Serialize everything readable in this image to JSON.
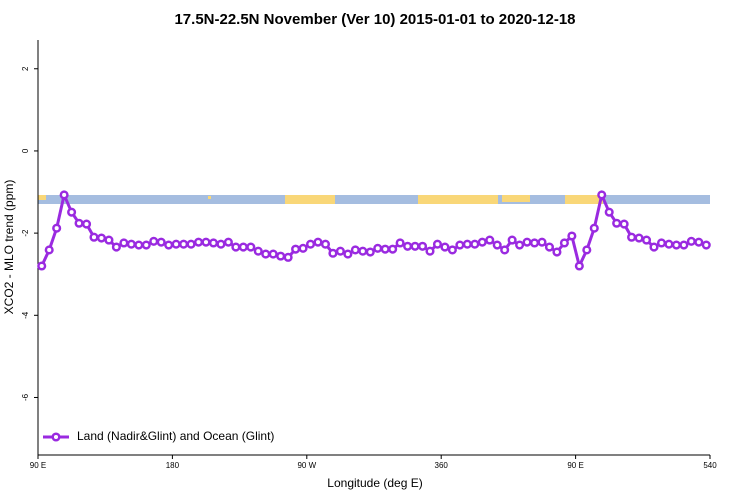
{
  "chart_data": {
    "type": "line",
    "title": "17.5N-22.5N November (Ver 10)   2015-01-01 to 2020-12-18",
    "x_label": "Longitude (deg E)",
    "y_label": "XCO2 - MLO trend (ppm)",
    "xlim": [
      90,
      540
    ],
    "ylim": [
      -7.4,
      2.7
    ],
    "xticks": [
      {
        "value": 90,
        "label": "90 E"
      },
      180,
      {
        "value": 270,
        "label": "90 W"
      },
      360,
      {
        "value": 450,
        "label": "90 E"
      },
      540
    ],
    "yticks": [
      2,
      0,
      -2,
      -4,
      -6
    ],
    "x": [
      92.5,
      97.5,
      102.5,
      107.5,
      112.5,
      117.5,
      122.5,
      127.5,
      132.5,
      137.5,
      142.5,
      147.5,
      152.5,
      157.5,
      162.5,
      167.5,
      172.5,
      177.5,
      182.5,
      187.5,
      192.5,
      197.5,
      202.5,
      207.5,
      212.5,
      217.5,
      222.5,
      227.5,
      232.5,
      237.5,
      242.5,
      247.5,
      252.5,
      257.5,
      262.5,
      267.5,
      272.5,
      277.5,
      282.5,
      287.5,
      292.5,
      297.5,
      302.5,
      307.5,
      312.5,
      317.5,
      322.5,
      327.5,
      332.5,
      337.5,
      342.5,
      347.5,
      352.5,
      357.5,
      362.5,
      367.5,
      372.5,
      377.5,
      382.5,
      387.5,
      392.5,
      397.5,
      402.5,
      407.5,
      412.5,
      417.5,
      422.5,
      427.5,
      432.5,
      437.5,
      442.5,
      447.5,
      452.5,
      457.5,
      462.5,
      467.5,
      472.5,
      477.5,
      482.5,
      487.5,
      492.5,
      497.5,
      502.5,
      507.5,
      512.5,
      517.5,
      522.5,
      527.5,
      532.5,
      537.5
    ],
    "legend": "bottom-left",
    "series": [
      {
        "name": "Land (Nadir&Glint) and Ocean (Glint)",
        "color": "#9a2ae0",
        "values": [
          -2.8,
          -2.41,
          -1.88,
          -1.07,
          -1.49,
          -1.76,
          -1.78,
          -2.1,
          -2.12,
          -2.17,
          -2.34,
          -2.24,
          -2.27,
          -2.29,
          -2.29,
          -2.2,
          -2.22,
          -2.29,
          -2.27,
          -2.27,
          -2.27,
          -2.22,
          -2.22,
          -2.24,
          -2.27,
          -2.22,
          -2.34,
          -2.34,
          -2.34,
          -2.44,
          -2.51,
          -2.51,
          -2.56,
          -2.59,
          -2.39,
          -2.37,
          -2.27,
          -2.22,
          -2.27,
          -2.49,
          -2.44,
          -2.51,
          -2.41,
          -2.44,
          -2.46,
          -2.37,
          -2.39,
          -2.39,
          -2.24,
          -2.32,
          -2.32,
          -2.32,
          -2.44,
          -2.27,
          -2.34,
          -2.41,
          -2.29,
          -2.27,
          -2.27,
          -2.22,
          -2.17,
          -2.29,
          -2.41,
          -2.17,
          -2.29,
          -2.22,
          -2.24,
          -2.22,
          -2.34,
          -2.46,
          -2.24,
          -2.07,
          -2.8,
          -2.41,
          -1.88,
          -1.07,
          -1.49,
          -1.76,
          -1.78,
          -2.1,
          -2.12,
          -2.17,
          -2.34,
          -2.24,
          -2.27,
          -2.29,
          -2.29,
          -2.2,
          -2.22,
          -2.29
        ]
      }
    ]
  }
}
